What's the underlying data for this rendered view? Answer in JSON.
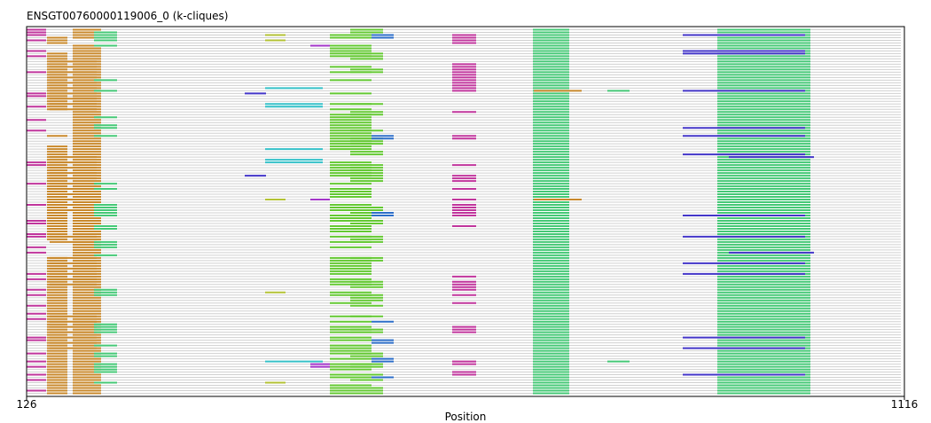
{
  "chart_data": {
    "type": "track-alignment",
    "title": "ENSGT00760000119006_0 (k-cliques)",
    "xlabel": "Position",
    "xlim": [
      126,
      1116
    ],
    "ticks": [
      126,
      1116
    ],
    "grid": false,
    "legend": "none",
    "track_count": 138,
    "background_color": "#d0d0d0",
    "clusters": [
      {
        "name": "magenta-n",
        "color": "#c0359c",
        "start": 126,
        "end": 148,
        "rows": [
          0,
          1,
          2,
          4,
          8,
          10,
          16,
          24,
          25,
          29,
          34,
          38,
          50,
          51,
          58,
          66,
          72,
          73,
          77,
          78,
          82,
          84,
          92,
          94,
          98,
          100,
          104,
          107,
          109,
          116,
          117,
          122,
          125,
          127,
          130,
          132,
          136
        ]
      },
      {
        "name": "orange-a",
        "color": "#c8882b",
        "start": 149,
        "end": 172,
        "rows": [
          3,
          4,
          5,
          9,
          10,
          11,
          12,
          13,
          14,
          15,
          16,
          17,
          18,
          19,
          20,
          21,
          22,
          23,
          24,
          25,
          26,
          27,
          28,
          29,
          30,
          40,
          44,
          45,
          46,
          47,
          48,
          49,
          50,
          51,
          52,
          53,
          54,
          55,
          56,
          57,
          58,
          59,
          60,
          61,
          62,
          63,
          64,
          65,
          66,
          67,
          68,
          69,
          70,
          71,
          72,
          73,
          74,
          75,
          76,
          77,
          78,
          79,
          86,
          87,
          88,
          89,
          90,
          91,
          92,
          93,
          94,
          95,
          96,
          97,
          98,
          99,
          100,
          101,
          102,
          103,
          104,
          105,
          106,
          107,
          108,
          109,
          110,
          111,
          112,
          113,
          114,
          115,
          116,
          117,
          118,
          119,
          120,
          121,
          122,
          123,
          124,
          125,
          126,
          127,
          128,
          129,
          130,
          131,
          132,
          133,
          134,
          135,
          136,
          137
        ]
      },
      {
        "name": "orange-b",
        "color": "#c8882b",
        "start": 152,
        "end": 205,
        "rows": [
          12,
          14,
          16,
          18,
          20,
          22,
          24,
          26,
          28,
          30,
          48,
          50,
          52,
          54,
          56,
          58,
          60,
          62,
          64,
          66,
          68,
          78,
          80,
          86,
          88,
          90,
          92,
          94,
          96,
          108,
          110,
          112,
          114,
          116,
          118,
          120
        ]
      },
      {
        "name": "orange-c",
        "color": "#c8882b",
        "start": 178,
        "end": 210,
        "rows": [
          0,
          1,
          2,
          3,
          6,
          7,
          8,
          9,
          10,
          11,
          12,
          13,
          14,
          15,
          16,
          17,
          18,
          19,
          20,
          21,
          22,
          23,
          24,
          25,
          26,
          27,
          28,
          29,
          30,
          31,
          32,
          33,
          34,
          35,
          36,
          37,
          38,
          39,
          40,
          41,
          42,
          43,
          44,
          45,
          46,
          47,
          48,
          49,
          50,
          51,
          52,
          53,
          54,
          55,
          56,
          57,
          58,
          59,
          60,
          61,
          62,
          63,
          64,
          65,
          66,
          67,
          68,
          69,
          70,
          71,
          72,
          73,
          74,
          75,
          76,
          77,
          78,
          79,
          80,
          81,
          82,
          83,
          84,
          85,
          86,
          87,
          88,
          89,
          90,
          91,
          92,
          93,
          94,
          95,
          96,
          97,
          98,
          99,
          100,
          101,
          102,
          103,
          104,
          105,
          106,
          107,
          108,
          109,
          110,
          111,
          112,
          113,
          114,
          115,
          116,
          117,
          118,
          119,
          120,
          121,
          122,
          123,
          124,
          125,
          126,
          127,
          128,
          129,
          130,
          131,
          132,
          133,
          134,
          135,
          136,
          137
        ]
      },
      {
        "name": "green-left",
        "color": "#45c876",
        "start": 202,
        "end": 228,
        "rows": [
          1,
          2,
          3,
          4,
          6,
          19,
          23,
          33,
          36,
          37,
          40,
          58,
          60,
          66,
          67,
          68,
          69,
          70,
          74,
          75,
          80,
          81,
          82,
          85,
          98,
          99,
          100,
          111,
          112,
          113,
          114,
          119,
          122,
          123,
          126,
          127,
          128,
          129,
          133
        ]
      },
      {
        "name": "olive",
        "color": "#b3c234",
        "start": 395,
        "end": 418,
        "rows": [
          2,
          4,
          64,
          99,
          133
        ]
      },
      {
        "name": "purple-a",
        "color": "#a335c8",
        "start": 446,
        "end": 468,
        "rows": [
          6,
          64,
          126,
          127
        ]
      },
      {
        "name": "blue-a",
        "color": "#4335c8",
        "start": 372,
        "end": 396,
        "rows": [
          24,
          55
        ]
      },
      {
        "name": "cyan",
        "color": "#35c0c8",
        "start": 395,
        "end": 460,
        "rows": [
          22,
          28,
          29,
          45,
          49,
          50,
          125
        ]
      },
      {
        "name": "lime",
        "color": "#63c832",
        "start": 468,
        "end": 515,
        "rows": [
          2,
          3,
          6,
          7,
          8,
          9,
          10,
          14,
          16,
          19,
          24,
          28,
          30,
          32,
          33,
          34,
          35,
          36,
          37,
          38,
          39,
          40,
          41,
          42,
          43,
          44,
          45,
          50,
          51,
          52,
          53,
          54,
          55,
          58,
          60,
          61,
          62,
          63,
          66,
          67,
          68,
          70,
          71,
          72,
          74,
          75,
          76,
          78,
          80,
          82,
          86,
          87,
          88,
          89,
          90,
          91,
          92,
          94,
          95,
          96,
          99,
          100,
          103,
          108,
          110,
          112,
          113,
          114,
          116,
          117,
          119,
          120,
          121,
          122,
          124,
          126,
          127,
          128,
          130,
          131,
          134,
          135,
          136,
          137
        ]
      },
      {
        "name": "lime-b",
        "color": "#63c832",
        "start": 491,
        "end": 528,
        "rows": [
          0,
          1,
          2,
          3,
          9,
          10,
          11,
          15,
          16,
          28,
          31,
          32,
          38,
          41,
          42,
          43,
          46,
          47,
          51,
          52,
          53,
          54,
          55,
          56,
          57,
          67,
          68,
          69,
          70,
          72,
          73,
          78,
          79,
          80,
          86,
          87,
          95,
          96,
          97,
          100,
          101,
          102,
          104,
          108,
          113,
          114,
          122,
          123,
          126,
          127,
          130,
          131,
          132,
          135,
          136,
          137
        ]
      },
      {
        "name": "blue-b",
        "color": "#2d6ec8",
        "start": 515,
        "end": 540,
        "rows": [
          2,
          3,
          40,
          41,
          69,
          70,
          110,
          117,
          118,
          124,
          125,
          131
        ]
      },
      {
        "name": "magenta-r",
        "color": "#c0359c",
        "start": 606,
        "end": 633,
        "rows": [
          2,
          3,
          4,
          5,
          13,
          14,
          15,
          16,
          17,
          18,
          19,
          20,
          21,
          22,
          23,
          31,
          40,
          41,
          51,
          55,
          56,
          57,
          60,
          64,
          66,
          67,
          68,
          69,
          70,
          74,
          93,
          95,
          96,
          97,
          98,
          100,
          103,
          112,
          113,
          114,
          125,
          126,
          129,
          130
        ]
      },
      {
        "name": "green-main",
        "color": "#45c876",
        "start": 697,
        "end": 738,
        "rows": [
          0,
          1,
          2,
          3,
          4,
          5,
          6,
          7,
          8,
          9,
          10,
          11,
          12,
          13,
          14,
          15,
          16,
          17,
          18,
          19,
          20,
          21,
          22,
          23,
          24,
          25,
          26,
          27,
          28,
          29,
          30,
          31,
          32,
          33,
          34,
          35,
          36,
          37,
          38,
          39,
          40,
          41,
          42,
          43,
          44,
          45,
          46,
          47,
          48,
          49,
          50,
          51,
          52,
          53,
          54,
          55,
          56,
          57,
          58,
          59,
          60,
          61,
          62,
          63,
          64,
          65,
          66,
          67,
          68,
          69,
          70,
          71,
          72,
          73,
          74,
          75,
          76,
          77,
          78,
          79,
          80,
          81,
          82,
          83,
          84,
          85,
          86,
          87,
          88,
          89,
          90,
          91,
          92,
          93,
          94,
          95,
          96,
          97,
          98,
          99,
          100,
          101,
          102,
          103,
          104,
          105,
          106,
          107,
          108,
          109,
          110,
          111,
          112,
          113,
          114,
          115,
          116,
          117,
          118,
          119,
          120,
          121,
          122,
          123,
          124,
          125,
          126,
          127,
          128,
          129,
          130,
          131,
          132,
          133,
          134,
          135,
          136,
          137
        ]
      },
      {
        "name": "orange-d",
        "color": "#c8882b",
        "start": 698,
        "end": 752,
        "rows": [
          23,
          64
        ]
      },
      {
        "name": "green-mid",
        "color": "#45c876",
        "start": 781,
        "end": 806,
        "rows": [
          23,
          125
        ]
      },
      {
        "name": "green-right",
        "color": "#45c876",
        "start": 905,
        "end": 1010,
        "rows": [
          0,
          1,
          2,
          3,
          4,
          5,
          6,
          7,
          8,
          9,
          10,
          11,
          12,
          13,
          14,
          15,
          16,
          17,
          18,
          19,
          20,
          21,
          22,
          23,
          24,
          25,
          26,
          27,
          28,
          29,
          30,
          31,
          32,
          33,
          34,
          35,
          36,
          37,
          38,
          39,
          40,
          41,
          42,
          43,
          44,
          45,
          46,
          47,
          48,
          49,
          50,
          51,
          52,
          53,
          54,
          55,
          56,
          57,
          58,
          59,
          60,
          61,
          62,
          63,
          64,
          65,
          66,
          67,
          68,
          69,
          70,
          71,
          72,
          73,
          74,
          75,
          76,
          77,
          78,
          79,
          80,
          81,
          82,
          83,
          84,
          85,
          86,
          87,
          88,
          89,
          90,
          91,
          92,
          93,
          94,
          95,
          96,
          97,
          98,
          99,
          100,
          101,
          102,
          103,
          104,
          105,
          106,
          107,
          108,
          109,
          110,
          111,
          112,
          113,
          114,
          115,
          116,
          117,
          118,
          119,
          120,
          121,
          122,
          123,
          124,
          125,
          126,
          127,
          128,
          129,
          130,
          131,
          132,
          133,
          134,
          135,
          136,
          137
        ]
      },
      {
        "name": "blue-right",
        "color": "#4335c8",
        "start": 866,
        "end": 1004,
        "rows": [
          2,
          8,
          9,
          23,
          37,
          40,
          47,
          70,
          78,
          88,
          92,
          116,
          120,
          130
        ]
      },
      {
        "name": "blue-right-b",
        "color": "#4335c8",
        "start": 918,
        "end": 1014,
        "rows": [
          48,
          84
        ]
      }
    ]
  }
}
